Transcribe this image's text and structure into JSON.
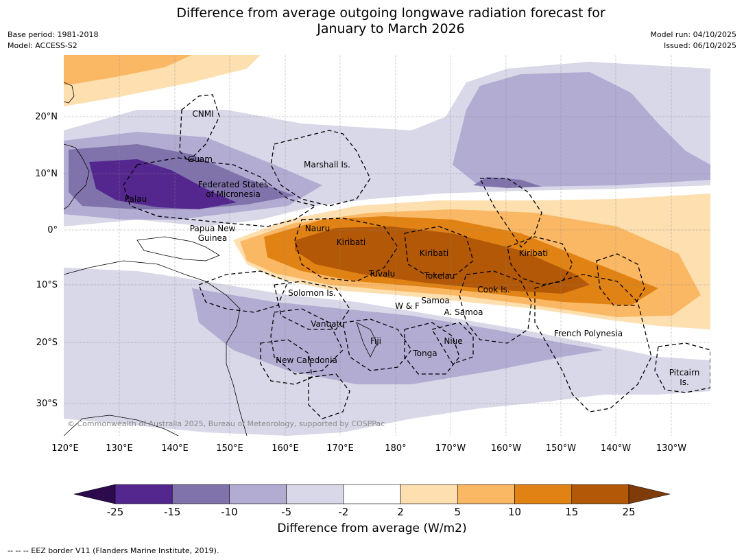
{
  "title_line1": "Difference from average outgoing longwave radiation forecast for",
  "title_line2": "January to March 2026",
  "meta": {
    "base_period": "Base period: 1981-2018",
    "model": "Model: ACCESS-S2",
    "model_run": "Model run: 04/10/2025",
    "issued": "Issued: 06/10/2025"
  },
  "axes": {
    "lon_ticks": [
      "120°E",
      "130°E",
      "140°E",
      "150°E",
      "160°E",
      "170°E",
      "180°",
      "170°W",
      "160°W",
      "150°W",
      "140°W",
      "130°W"
    ],
    "lat_ticks": [
      "20°N",
      "10°N",
      "0°",
      "10°S",
      "20°S",
      "30°S"
    ]
  },
  "regions": {
    "cnmi": "CNMI",
    "guam": "Guam",
    "marshall": "Marshall Is.",
    "fsm1": "Federated States",
    "fsm2": "of Micronesia",
    "palau": "Palau",
    "png1": "Papua New",
    "png2": "Guinea",
    "nauru": "Nauru",
    "kiribati1": "Kiribati",
    "kiribati2": "Kiribati",
    "kiribati3": "Kiribati",
    "tuvalu": "Tuvalu",
    "tokelau": "Tokelau",
    "cook": "Cook Is.",
    "solomon": "Solomon Is.",
    "wf": "W & F",
    "samoa": "Samoa",
    "asamoa": "A. Samoa",
    "vanuatu": "Vanuatu",
    "fiji": "Fiji",
    "niue": "Niue",
    "tonga": "Tonga",
    "french_polynesia": "French Polynesia",
    "new_caledonia": "New Caledonia",
    "pitcairn1": "Pitcairn",
    "pitcairn2": "Is."
  },
  "copyright": "© Commonwealth of Australia 2025, Bureau of Meteorology, supported by COSPPac",
  "colorbar": {
    "ticks": [
      "-25",
      "-15",
      "-10",
      "-5",
      "-2",
      "2",
      "5",
      "10",
      "15",
      "25"
    ],
    "label": "Difference from average (W/m2)",
    "colors": [
      "#2d0a4e",
      "#54278f",
      "#8073ac",
      "#b2abd2",
      "#d8d8e8",
      "#ffffff",
      "#fddfb0",
      "#fbb864",
      "#e08214",
      "#b35806",
      "#7f3b08"
    ]
  },
  "footer": "--  --  -- EEZ border V11 (Flanders Marine Institute, 2019)."
}
